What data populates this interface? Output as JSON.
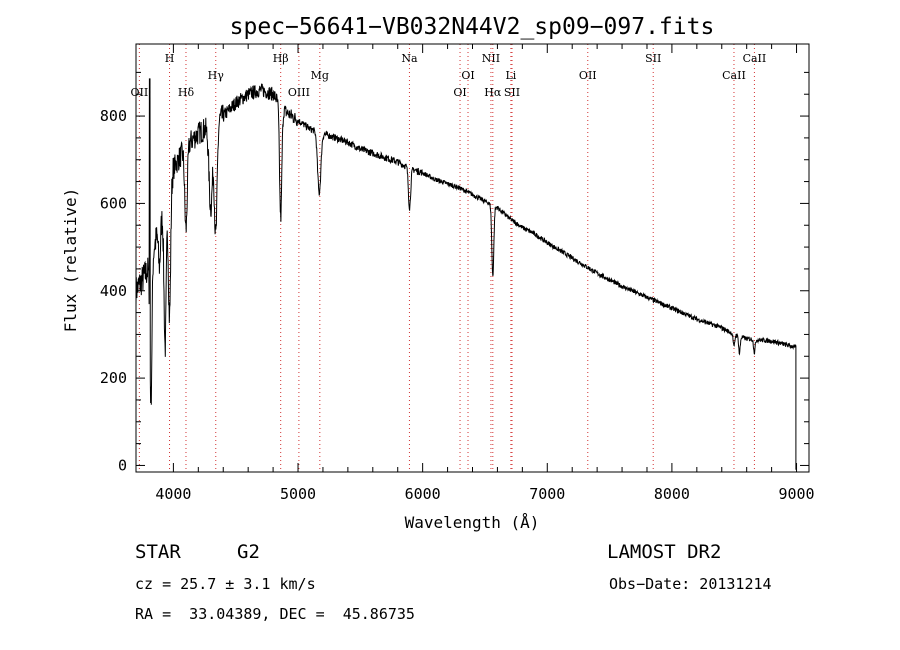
{
  "chart_data": {
    "type": "line",
    "title": "spec−56641−VB032N44V2_sp09−097.fits",
    "xlabel": "Wavelength (Å)",
    "ylabel": "Flux (relative)",
    "xlim": [
      3700,
      9100
    ],
    "ylim": [
      -15,
      965
    ],
    "x_ticks": [
      4000,
      5000,
      6000,
      7000,
      8000,
      9000
    ],
    "y_ticks": [
      0,
      200,
      400,
      600,
      800
    ],
    "line_color": "#000000",
    "marker_color": "#d23232",
    "grid": false,
    "continuum": {
      "x": [
        3700,
        3800,
        3900,
        4000,
        4100,
        4200,
        4300,
        4400,
        4500,
        4600,
        4700,
        4800,
        4900,
        5000,
        5100,
        5200,
        5300,
        5400,
        5500,
        5600,
        5700,
        5800,
        5900,
        6000,
        6100,
        6200,
        6300,
        6400,
        6500,
        6600,
        6700,
        6800,
        6900,
        7000,
        7200,
        7400,
        7600,
        7800,
        8000,
        8200,
        8400,
        8500,
        8600,
        8800,
        9000
      ],
      "y": [
        400,
        450,
        560,
        680,
        730,
        760,
        780,
        800,
        830,
        850,
        860,
        850,
        810,
        790,
        770,
        760,
        750,
        740,
        725,
        715,
        705,
        695,
        680,
        670,
        655,
        645,
        635,
        620,
        605,
        590,
        565,
        545,
        530,
        510,
        475,
        440,
        410,
        385,
        360,
        335,
        315,
        300,
        290,
        285,
        270
      ]
    },
    "absorption_features": [
      {
        "x": 3820,
        "depth": 320,
        "width": 8
      },
      {
        "x": 3888,
        "depth": 90,
        "width": 8
      },
      {
        "x": 3934,
        "depth": 330,
        "width": 9
      },
      {
        "x": 3969,
        "depth": 300,
        "width": 9
      },
      {
        "x": 4101,
        "depth": 190,
        "width": 10
      },
      {
        "x": 4300,
        "depth": 190,
        "width": 14
      },
      {
        "x": 4340,
        "depth": 260,
        "width": 11
      },
      {
        "x": 4861,
        "depth": 260,
        "width": 9
      },
      {
        "x": 5170,
        "depth": 140,
        "width": 13
      },
      {
        "x": 5895,
        "depth": 90,
        "width": 9
      },
      {
        "x": 6563,
        "depth": 160,
        "width": 8
      },
      {
        "x": 8498,
        "depth": 30,
        "width": 6
      },
      {
        "x": 8542,
        "depth": 40,
        "width": 6
      },
      {
        "x": 8662,
        "depth": 30,
        "width": 6
      }
    ],
    "spike": {
      "x": 3810,
      "y": 885
    },
    "end_drop": {
      "x": 8995,
      "y": -10
    },
    "line_markers": [
      {
        "label": "OII",
        "x": 3727,
        "row": 3
      },
      {
        "label": "H",
        "x": 3969,
        "row": 1
      },
      {
        "label": "Hδ",
        "x": 4101,
        "row": 3
      },
      {
        "label": "Hγ",
        "x": 4340,
        "row": 2
      },
      {
        "label": "Hβ",
        "x": 4861,
        "row": 1
      },
      {
        "label": "OIII",
        "x": 5007,
        "row": 3
      },
      {
        "label": "Mg",
        "x": 5175,
        "row": 2
      },
      {
        "label": "Na",
        "x": 5894,
        "row": 1
      },
      {
        "label": "OI",
        "x": 6300,
        "row": 3
      },
      {
        "label": "OI",
        "x": 6364,
        "row": 2
      },
      {
        "label": "NII",
        "x": 6548,
        "row": 1
      },
      {
        "label": "Hα",
        "x": 6563,
        "row": 3
      },
      {
        "label": "Li",
        "x": 6708,
        "row": 2
      },
      {
        "label": "SII",
        "x": 6717,
        "row": 3
      },
      {
        "label": "OII",
        "x": 7325,
        "row": 2
      },
      {
        "label": "SII",
        "x": 7850,
        "row": 1
      },
      {
        "label": "CaII",
        "x": 8498,
        "row": 2
      },
      {
        "label": "CaII",
        "x": 8662,
        "row": 1
      }
    ]
  },
  "info": {
    "object_class": "STAR",
    "subclass": "G2",
    "survey": "LAMOST DR2",
    "cz": "cz = 25.7 ± 3.1 km/s",
    "obs_date": "Obs−Date: 20131214",
    "coords": "RA =  33.04389, DEC =  45.86735"
  }
}
